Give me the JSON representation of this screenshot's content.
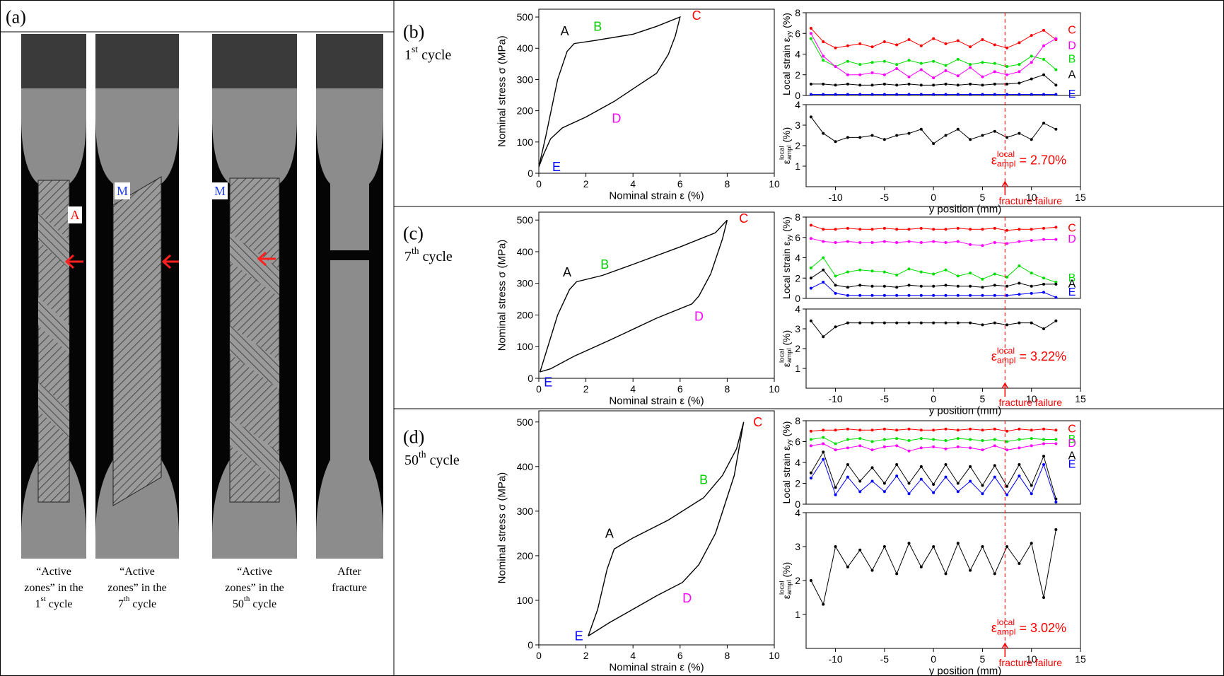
{
  "panel_a": {
    "label": "(a)",
    "markers": [
      "A",
      "M",
      "M"
    ],
    "captions": [
      [
        [
          "“Active"
        ],
        [
          "zones” in the"
        ],
        [
          "1",
          "st",
          " cycle"
        ]
      ],
      [
        [
          "“Active"
        ],
        [
          "zones” in the"
        ],
        [
          "7",
          "th",
          " cycle"
        ]
      ],
      [
        [
          "“Active"
        ],
        [
          "zones” in the"
        ],
        [
          "50",
          "th",
          " cycle"
        ]
      ],
      [
        [
          "After"
        ],
        [
          "fracture"
        ]
      ]
    ]
  },
  "panels": [
    {
      "label": "(b)",
      "cycle": [
        "1",
        "st",
        " cycle"
      ]
    },
    {
      "label": "(c)",
      "cycle": [
        "7",
        "th",
        " cycle"
      ]
    },
    {
      "label": "(d)",
      "cycle": [
        "50",
        "th",
        " cycle"
      ]
    }
  ],
  "chart_data": [
    {
      "type": "line",
      "xlabel": "Nominal strain ε (%)",
      "ylabel": "Nominal stress σ (MPa)",
      "xlim": [
        0,
        10
      ],
      "ylim": [
        0,
        525
      ],
      "xticks": [
        0,
        2,
        4,
        6,
        8,
        10
      ],
      "yticks": [
        0,
        100,
        200,
        300,
        400,
        500
      ],
      "series": [
        {
          "color": "#000000",
          "x": [
            0,
            0.3,
            0.8,
            1.2,
            1.5,
            2.4,
            4,
            5,
            6,
            5.8,
            5.5,
            5,
            4,
            3.2,
            2,
            1,
            0.5,
            0.2,
            0
          ],
          "values": [
            20,
            120,
            300,
            390,
            415,
            425,
            445,
            470,
            500,
            440,
            380,
            320,
            270,
            230,
            180,
            145,
            110,
            60,
            20
          ]
        }
      ],
      "point_labels": [
        {
          "text": "A",
          "color": "#000000"
        },
        {
          "text": "B",
          "color": "#00cc00"
        },
        {
          "text": "C",
          "color": "#ff0000"
        },
        {
          "text": "D",
          "color": "#ff00ff"
        },
        {
          "text": "E",
          "color": "#0000ff"
        }
      ]
    },
    {
      "type": "line",
      "ylabel": [
        "Local strain ε",
        "yy",
        " (%)"
      ],
      "xlim": [
        -13,
        15
      ],
      "ylim": [
        0,
        8
      ],
      "yticks": [
        0,
        2,
        4,
        6,
        8
      ],
      "x": [
        -12.5,
        -11.25,
        -10,
        -8.75,
        -7.5,
        -6.25,
        -5,
        -3.75,
        -2.5,
        -1.25,
        0,
        1.25,
        2.5,
        3.75,
        5,
        6.25,
        7.5,
        8.75,
        10,
        11.25,
        12.5
      ],
      "series": [
        {
          "name": "C",
          "color": "#ff0000",
          "values": [
            6.5,
            5.2,
            4.6,
            4.8,
            5.0,
            4.7,
            5.2,
            4.9,
            5.4,
            4.8,
            5.5,
            5.0,
            5.3,
            4.7,
            5.4,
            4.9,
            4.6,
            5.1,
            5.8,
            6.3,
            5.4
          ]
        },
        {
          "name": "B",
          "color": "#00dd00",
          "values": [
            5.5,
            3.4,
            2.8,
            3.3,
            3.0,
            3.2,
            3.3,
            3.0,
            3.4,
            3.1,
            3.3,
            2.9,
            3.5,
            3.0,
            3.2,
            3.1,
            2.8,
            3.0,
            3.8,
            3.5,
            2.5
          ]
        },
        {
          "name": "D",
          "color": "#ff00ff",
          "values": [
            6.0,
            3.8,
            2.8,
            2.0,
            2.0,
            2.2,
            2.0,
            2.6,
            1.8,
            2.5,
            1.7,
            2.4,
            1.9,
            2.7,
            1.8,
            2.3,
            2.0,
            2.3,
            3.2,
            4.8,
            5.5
          ]
        },
        {
          "name": "A",
          "color": "#000000",
          "values": [
            1.1,
            1.1,
            1.0,
            1.1,
            1.0,
            1.0,
            1.1,
            1.0,
            1.1,
            1.0,
            1.0,
            1.1,
            1.0,
            1.1,
            1.0,
            1.1,
            1.1,
            1.2,
            1.6,
            2.0,
            1.0
          ]
        },
        {
          "name": "E",
          "color": "#0000ff",
          "values": [
            0.1,
            0.1,
            0.1,
            0.1,
            0.1,
            0.1,
            0.1,
            0.1,
            0.1,
            0.1,
            0.1,
            0.1,
            0.1,
            0.1,
            0.1,
            0.1,
            0.1,
            0.1,
            0.1,
            0.1,
            0.1
          ]
        }
      ]
    },
    {
      "type": "line",
      "ylabel": [
        "ε",
        "local",
        "ampl",
        " (%)"
      ],
      "xlabel": "y position (mm)",
      "xlim": [
        -13,
        15
      ],
      "ylim": [
        0,
        4
      ],
      "xticks": [
        -10,
        -5,
        0,
        5,
        10,
        15
      ],
      "yticks": [
        1,
        2,
        3,
        4
      ],
      "x": [
        -12.5,
        -11.25,
        -10,
        -8.75,
        -7.5,
        -6.25,
        -5,
        -3.75,
        -2.5,
        -1.25,
        0,
        1.25,
        2.5,
        3.75,
        5,
        6.25,
        7.5,
        8.75,
        10,
        11.25,
        12.5
      ],
      "series": [
        {
          "color": "#000000",
          "values": [
            3.4,
            2.6,
            2.2,
            2.4,
            2.4,
            2.5,
            2.3,
            2.5,
            2.6,
            2.8,
            2.1,
            2.5,
            2.8,
            2.3,
            2.5,
            2.7,
            2.4,
            2.6,
            2.3,
            3.1,
            2.8
          ]
        }
      ],
      "annotation": {
        "parts": [
          "ε",
          "local",
          "ampl",
          " = 2.70%"
        ],
        "color": "#ff0000"
      },
      "fracture": {
        "x": 7.3,
        "label": "fracture failure",
        "color": "#ff0000"
      }
    },
    {
      "type": "line",
      "xlabel": "Nominal strain ε (%)",
      "ylabel": "Nominal stress σ (MPa)",
      "xlim": [
        0,
        10
      ],
      "ylim": [
        0,
        525
      ],
      "xticks": [
        0,
        2,
        4,
        6,
        8,
        10
      ],
      "yticks": [
        0,
        100,
        200,
        300,
        400,
        500
      ],
      "series": [
        {
          "color": "#000000",
          "x": [
            0.05,
            0.3,
            0.8,
            1.3,
            1.6,
            2.7,
            4,
            6,
            7.5,
            8,
            7.8,
            7.3,
            6.8,
            6.5,
            5,
            3,
            1.5,
            0.5,
            0.05
          ],
          "values": [
            20,
            80,
            200,
            280,
            305,
            325,
            360,
            415,
            460,
            500,
            440,
            330,
            260,
            235,
            190,
            120,
            70,
            30,
            20
          ]
        }
      ],
      "point_labels": [
        {
          "text": "A",
          "color": "#000000"
        },
        {
          "text": "B",
          "color": "#00cc00"
        },
        {
          "text": "C",
          "color": "#ff0000"
        },
        {
          "text": "D",
          "color": "#ff00ff"
        },
        {
          "text": "E",
          "color": "#0000ff"
        }
      ]
    },
    {
      "type": "line",
      "ylabel": [
        "Local strain ε",
        "yy",
        " (%)"
      ],
      "xlim": [
        -13,
        15
      ],
      "ylim": [
        0,
        8
      ],
      "yticks": [
        0,
        2,
        4,
        6,
        8
      ],
      "x": [
        -12.5,
        -11.25,
        -10,
        -8.75,
        -7.5,
        -6.25,
        -5,
        -3.75,
        -2.5,
        -1.25,
        0,
        1.25,
        2.5,
        3.75,
        5,
        6.25,
        7.5,
        8.75,
        10,
        11.25,
        12.5
      ],
      "series": [
        {
          "name": "C",
          "color": "#ff0000",
          "values": [
            7.2,
            6.8,
            6.8,
            6.9,
            6.8,
            6.8,
            6.9,
            6.8,
            6.8,
            6.9,
            6.8,
            6.8,
            6.9,
            6.8,
            6.8,
            6.9,
            6.7,
            6.8,
            6.8,
            6.9,
            7.0
          ]
        },
        {
          "name": "D",
          "color": "#ff00ff",
          "values": [
            5.9,
            5.6,
            5.5,
            5.6,
            5.5,
            5.5,
            5.6,
            5.5,
            5.6,
            5.5,
            5.6,
            5.5,
            5.6,
            5.3,
            5.2,
            5.5,
            5.4,
            5.6,
            5.7,
            5.8,
            5.8
          ]
        },
        {
          "name": "B",
          "color": "#00dd00",
          "values": [
            3.0,
            4.0,
            2.2,
            2.6,
            2.8,
            2.7,
            2.6,
            2.3,
            2.9,
            2.6,
            2.4,
            2.8,
            2.2,
            2.5,
            1.9,
            2.4,
            2.1,
            3.2,
            2.5,
            2.0,
            1.6
          ]
        },
        {
          "name": "A",
          "color": "#000000",
          "values": [
            2.0,
            2.8,
            1.3,
            1.1,
            1.3,
            1.2,
            1.2,
            1.1,
            1.3,
            1.2,
            1.2,
            1.3,
            1.2,
            1.2,
            1.1,
            1.3,
            1.2,
            1.5,
            1.2,
            1.4,
            1.4
          ]
        },
        {
          "name": "E",
          "color": "#0000ff",
          "values": [
            1.0,
            1.6,
            0.5,
            0.3,
            0.3,
            0.3,
            0.3,
            0.3,
            0.3,
            0.3,
            0.3,
            0.3,
            0.3,
            0.3,
            0.3,
            0.3,
            0.3,
            0.4,
            0.5,
            0.6,
            0.1
          ]
        }
      ]
    },
    {
      "type": "line",
      "ylabel": [
        "ε",
        "local",
        "ampl",
        " (%)"
      ],
      "xlabel": "y position (mm)",
      "xlim": [
        -13,
        15
      ],
      "ylim": [
        0,
        4
      ],
      "xticks": [
        -10,
        -5,
        0,
        5,
        10,
        15
      ],
      "yticks": [
        1,
        2,
        3,
        4
      ],
      "x": [
        -12.5,
        -11.25,
        -10,
        -8.75,
        -7.5,
        -6.25,
        -5,
        -3.75,
        -2.5,
        -1.25,
        0,
        1.25,
        2.5,
        3.75,
        5,
        6.25,
        7.5,
        8.75,
        10,
        11.25,
        12.5
      ],
      "series": [
        {
          "color": "#000000",
          "values": [
            3.4,
            2.6,
            3.1,
            3.3,
            3.3,
            3.3,
            3.3,
            3.3,
            3.3,
            3.3,
            3.3,
            3.3,
            3.3,
            3.3,
            3.2,
            3.3,
            3.2,
            3.3,
            3.3,
            3.0,
            3.4
          ]
        }
      ],
      "annotation": {
        "parts": [
          "ε",
          "local",
          "ampl",
          " = 3.22%"
        ],
        "color": "#ff0000"
      },
      "fracture": {
        "x": 7.3,
        "label": "fracture failure",
        "color": "#ff0000"
      }
    },
    {
      "type": "line",
      "xlabel": "Nominal strain ε (%)",
      "ylabel": "Nominal stress σ (MPa)",
      "xlim": [
        0,
        10
      ],
      "ylim": [
        0,
        525
      ],
      "xticks": [
        0,
        2,
        4,
        6,
        8,
        10
      ],
      "yticks": [
        0,
        100,
        200,
        300,
        400,
        500
      ],
      "series": [
        {
          "color": "#000000",
          "x": [
            2.1,
            2.5,
            2.9,
            3.2,
            4,
            5.5,
            7,
            7.8,
            8.4,
            8.7,
            8.3,
            7.5,
            6.8,
            6.1,
            5,
            4,
            3,
            2.1
          ],
          "values": [
            20,
            80,
            170,
            215,
            240,
            280,
            330,
            380,
            440,
            500,
            380,
            250,
            180,
            140,
            110,
            80,
            50,
            20
          ]
        }
      ],
      "point_labels": [
        {
          "text": "A",
          "color": "#000000"
        },
        {
          "text": "B",
          "color": "#00cc00"
        },
        {
          "text": "C",
          "color": "#ff0000"
        },
        {
          "text": "D",
          "color": "#ff00ff"
        },
        {
          "text": "E",
          "color": "#0000ff"
        }
      ]
    },
    {
      "type": "line",
      "ylabel": [
        "Local strain ε",
        "yy",
        " (%)"
      ],
      "xlim": [
        -13,
        15
      ],
      "ylim": [
        0,
        8
      ],
      "yticks": [
        0,
        2,
        4,
        6,
        8
      ],
      "x": [
        -12.5,
        -11.25,
        -10,
        -8.75,
        -7.5,
        -6.25,
        -5,
        -3.75,
        -2.5,
        -1.25,
        0,
        1.25,
        2.5,
        3.75,
        5,
        6.25,
        7.5,
        8.75,
        10,
        11.25,
        12.5
      ],
      "series": [
        {
          "name": "C",
          "color": "#ff0000",
          "values": [
            7.0,
            7.1,
            7.1,
            7.2,
            7.1,
            7.1,
            7.2,
            7.1,
            7.2,
            7.1,
            7.1,
            7.2,
            7.1,
            7.2,
            7.1,
            7.2,
            7.0,
            7.2,
            7.1,
            7.2,
            7.1
          ]
        },
        {
          "name": "B",
          "color": "#00dd00",
          "values": [
            6.2,
            6.4,
            5.8,
            6.2,
            6.3,
            6.0,
            6.2,
            6.3,
            6.1,
            6.3,
            6.2,
            6.1,
            6.3,
            6.2,
            6.1,
            6.2,
            6.0,
            6.2,
            6.3,
            6.2,
            6.2
          ]
        },
        {
          "name": "D",
          "color": "#ff00ff",
          "values": [
            5.6,
            5.8,
            5.2,
            5.4,
            5.6,
            5.2,
            5.5,
            5.6,
            5.1,
            5.4,
            5.5,
            5.3,
            5.5,
            5.4,
            5.2,
            5.6,
            5.2,
            5.4,
            5.6,
            5.8,
            5.8
          ]
        },
        {
          "name": "A",
          "color": "#000000",
          "values": [
            3.0,
            5.0,
            1.6,
            3.8,
            2.2,
            3.5,
            2.0,
            3.8,
            2.0,
            3.6,
            1.9,
            3.8,
            2.0,
            3.6,
            1.8,
            3.7,
            1.7,
            3.8,
            1.8,
            4.6,
            0.5
          ]
        },
        {
          "name": "E",
          "color": "#0000ff",
          "values": [
            2.5,
            4.3,
            0.9,
            2.6,
            1.2,
            2.2,
            1.2,
            2.7,
            1.0,
            2.4,
            1.1,
            2.6,
            1.2,
            2.2,
            1.0,
            2.6,
            0.9,
            2.7,
            1.0,
            3.8,
            0.2
          ]
        }
      ]
    },
    {
      "type": "line",
      "ylabel": [
        "ε",
        "local",
        "ampl",
        " (%)"
      ],
      "xlabel": "y position (mm)",
      "xlim": [
        -13,
        15
      ],
      "ylim": [
        0,
        4
      ],
      "xticks": [
        -10,
        -5,
        0,
        5,
        10,
        15
      ],
      "yticks": [
        1,
        2,
        3,
        4
      ],
      "x": [
        -12.5,
        -11.25,
        -10,
        -8.75,
        -7.5,
        -6.25,
        -5,
        -3.75,
        -2.5,
        -1.25,
        0,
        1.25,
        2.5,
        3.75,
        5,
        6.25,
        7.5,
        8.75,
        10,
        11.25,
        12.5
      ],
      "series": [
        {
          "color": "#000000",
          "values": [
            2.0,
            1.3,
            3.0,
            2.4,
            2.9,
            2.3,
            3.0,
            2.2,
            3.1,
            2.4,
            3.0,
            2.2,
            3.1,
            2.3,
            3.0,
            2.2,
            3.0,
            2.5,
            3.1,
            1.5,
            3.5
          ]
        }
      ],
      "annotation": {
        "parts": [
          "ε",
          "local",
          "ampl",
          " = 3.02%"
        ],
        "color": "#ff0000"
      },
      "fracture": {
        "x": 7.3,
        "label": "fracture failure",
        "color": "#ff0000"
      }
    }
  ]
}
